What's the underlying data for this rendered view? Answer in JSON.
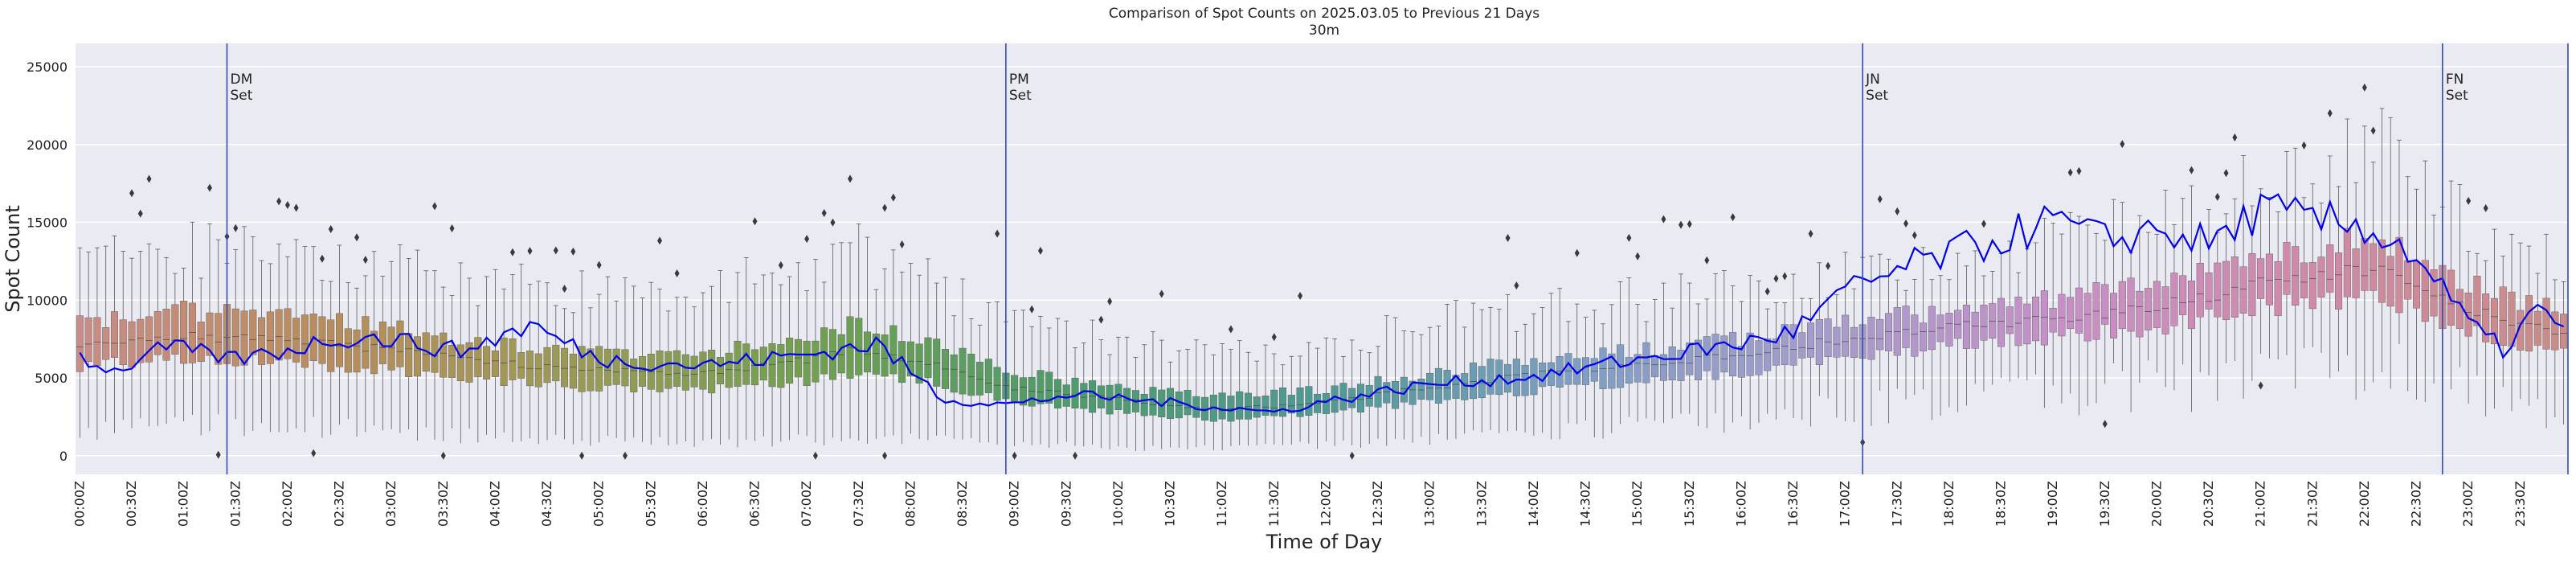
{
  "chart_data": {
    "type": "box",
    "title": "Comparison of Spot Counts on 2025.03.05 to Previous 21 Days",
    "subtitle": "30m",
    "xlabel": "Time of Day",
    "ylabel": "Spot Count",
    "ylim": [
      -1200,
      26500
    ],
    "yticks": [
      0,
      5000,
      10000,
      15000,
      20000,
      25000
    ],
    "xticks": [
      "00:00Z",
      "00:30Z",
      "01:00Z",
      "01:30Z",
      "02:00Z",
      "02:30Z",
      "03:00Z",
      "03:30Z",
      "04:00Z",
      "04:30Z",
      "05:00Z",
      "05:30Z",
      "06:00Z",
      "06:30Z",
      "07:00Z",
      "07:30Z",
      "08:00Z",
      "08:30Z",
      "09:00Z",
      "09:30Z",
      "10:00Z",
      "10:30Z",
      "11:00Z",
      "11:30Z",
      "12:00Z",
      "12:30Z",
      "13:00Z",
      "13:30Z",
      "14:00Z",
      "14:30Z",
      "15:00Z",
      "15:30Z",
      "16:00Z",
      "16:30Z",
      "17:00Z",
      "17:30Z",
      "18:00Z",
      "18:30Z",
      "19:00Z",
      "19:30Z",
      "20:00Z",
      "20:30Z",
      "21:00Z",
      "21:30Z",
      "22:00Z",
      "22:30Z",
      "23:00Z",
      "23:30Z"
    ],
    "slots_per_day": 288,
    "box_anchors": [
      {
        "slot": 0,
        "q1": 5800,
        "median": 7100,
        "q3": 8500,
        "lo": 1500,
        "hi": 12500
      },
      {
        "slot": 12,
        "q1": 6300,
        "median": 7700,
        "q3": 9300,
        "lo": 2000,
        "hi": 13500
      },
      {
        "slot": 24,
        "q1": 6000,
        "median": 7400,
        "q3": 8900,
        "lo": 2000,
        "hi": 13000
      },
      {
        "slot": 36,
        "q1": 5500,
        "median": 6800,
        "q3": 8200,
        "lo": 1500,
        "hi": 12000
      },
      {
        "slot": 48,
        "q1": 4800,
        "median": 6000,
        "q3": 7200,
        "lo": 1200,
        "hi": 11000
      },
      {
        "slot": 60,
        "q1": 4300,
        "median": 5500,
        "q3": 6700,
        "lo": 1000,
        "hi": 10500
      },
      {
        "slot": 72,
        "q1": 4200,
        "median": 5300,
        "q3": 6600,
        "lo": 800,
        "hi": 10500
      },
      {
        "slot": 84,
        "q1": 4800,
        "median": 6200,
        "q3": 7600,
        "lo": 1000,
        "hi": 12000
      },
      {
        "slot": 90,
        "q1": 5300,
        "median": 6800,
        "q3": 8600,
        "lo": 1000,
        "hi": 13000
      },
      {
        "slot": 96,
        "q1": 5000,
        "median": 6200,
        "q3": 7600,
        "lo": 1200,
        "hi": 11500
      },
      {
        "slot": 108,
        "q1": 3500,
        "median": 4400,
        "q3": 5400,
        "lo": 800,
        "hi": 9000
      },
      {
        "slot": 120,
        "q1": 2800,
        "median": 3600,
        "q3": 4400,
        "lo": 500,
        "hi": 7500
      },
      {
        "slot": 132,
        "q1": 2300,
        "median": 3000,
        "q3": 3800,
        "lo": 500,
        "hi": 6500
      },
      {
        "slot": 144,
        "q1": 2700,
        "median": 3400,
        "q3": 4300,
        "lo": 700,
        "hi": 7000
      },
      {
        "slot": 156,
        "q1": 3500,
        "median": 4400,
        "q3": 5300,
        "lo": 1000,
        "hi": 8500
      },
      {
        "slot": 168,
        "q1": 4200,
        "median": 5200,
        "q3": 6200,
        "lo": 1500,
        "hi": 9500
      },
      {
        "slot": 180,
        "q1": 4800,
        "median": 5800,
        "q3": 6800,
        "lo": 1800,
        "hi": 10000
      },
      {
        "slot": 192,
        "q1": 5400,
        "median": 6500,
        "q3": 7500,
        "lo": 2200,
        "hi": 10500
      },
      {
        "slot": 204,
        "q1": 6400,
        "median": 7500,
        "q3": 8600,
        "lo": 3000,
        "hi": 11500
      },
      {
        "slot": 216,
        "q1": 7100,
        "median": 8200,
        "q3": 9300,
        "lo": 3500,
        "hi": 12500
      },
      {
        "slot": 228,
        "q1": 7600,
        "median": 8800,
        "q3": 10000,
        "lo": 4000,
        "hi": 13500
      },
      {
        "slot": 240,
        "q1": 8200,
        "median": 9600,
        "q3": 11000,
        "lo": 4500,
        "hi": 15000
      },
      {
        "slot": 252,
        "q1": 9500,
        "median": 11000,
        "q3": 12600,
        "lo": 5000,
        "hi": 17500
      },
      {
        "slot": 264,
        "q1": 10300,
        "median": 12000,
        "q3": 14000,
        "lo": 5500,
        "hi": 20000
      },
      {
        "slot": 270,
        "q1": 9500,
        "median": 11200,
        "q3": 13200,
        "lo": 5000,
        "hi": 19000
      },
      {
        "slot": 276,
        "q1": 8000,
        "median": 9500,
        "q3": 11000,
        "lo": 4000,
        "hi": 15000
      },
      {
        "slot": 287,
        "q1": 6500,
        "median": 7800,
        "q3": 9200,
        "lo": 2500,
        "hi": 12500
      }
    ],
    "current_day_series": {
      "name": "2025.03.05",
      "color": "#0000ee",
      "anchors": [
        {
          "slot": 0,
          "value": 6400
        },
        {
          "slot": 4,
          "value": 5400
        },
        {
          "slot": 10,
          "value": 7000
        },
        {
          "slot": 18,
          "value": 6200
        },
        {
          "slot": 24,
          "value": 6800
        },
        {
          "slot": 30,
          "value": 7600
        },
        {
          "slot": 36,
          "value": 7500
        },
        {
          "slot": 44,
          "value": 6700
        },
        {
          "slot": 52,
          "value": 8400
        },
        {
          "slot": 60,
          "value": 6200
        },
        {
          "slot": 72,
          "value": 5800
        },
        {
          "slot": 84,
          "value": 6500
        },
        {
          "slot": 92,
          "value": 7200
        },
        {
          "slot": 100,
          "value": 3600
        },
        {
          "slot": 108,
          "value": 3300
        },
        {
          "slot": 114,
          "value": 3900
        },
        {
          "slot": 120,
          "value": 3700
        },
        {
          "slot": 132,
          "value": 3100
        },
        {
          "slot": 138,
          "value": 2800
        },
        {
          "slot": 144,
          "value": 3500
        },
        {
          "slot": 156,
          "value": 4600
        },
        {
          "slot": 168,
          "value": 5100
        },
        {
          "slot": 180,
          "value": 6200
        },
        {
          "slot": 192,
          "value": 7200
        },
        {
          "slot": 198,
          "value": 8000
        },
        {
          "slot": 204,
          "value": 10500
        },
        {
          "slot": 212,
          "value": 12300
        },
        {
          "slot": 220,
          "value": 13600
        },
        {
          "slot": 228,
          "value": 15100
        },
        {
          "slot": 234,
          "value": 13800
        },
        {
          "slot": 240,
          "value": 14600
        },
        {
          "slot": 246,
          "value": 13600
        },
        {
          "slot": 252,
          "value": 15800
        },
        {
          "slot": 258,
          "value": 15100
        },
        {
          "slot": 264,
          "value": 14800
        },
        {
          "slot": 270,
          "value": 12800
        },
        {
          "slot": 276,
          "value": 8500
        },
        {
          "slot": 280,
          "value": 6800
        },
        {
          "slot": 284,
          "value": 9500
        },
        {
          "slot": 287,
          "value": 7800
        }
      ]
    },
    "annotations": [
      {
        "label_line1": "DM",
        "label_line2": "Set",
        "time": "01:25Z",
        "slot": 17
      },
      {
        "label_line1": "PM",
        "label_line2": "Set",
        "time": "08:55Z",
        "slot": 107
      },
      {
        "label_line1": "JN",
        "label_line2": "Set",
        "time": "17:10Z",
        "slot": 206
      },
      {
        "label_line1": "FN",
        "label_line2": "Set",
        "time": "22:45Z",
        "slot": 273
      }
    ],
    "box_palette": [
      "#c98c86",
      "#b88d5b",
      "#9a9a55",
      "#6fa050",
      "#4e9b6c",
      "#4f9a93",
      "#7e9ec4",
      "#a59ccd",
      "#c88fc6",
      "#cf8aa7",
      "#c98c86"
    ],
    "background_color": "#eaeaf2",
    "grid": true
  }
}
